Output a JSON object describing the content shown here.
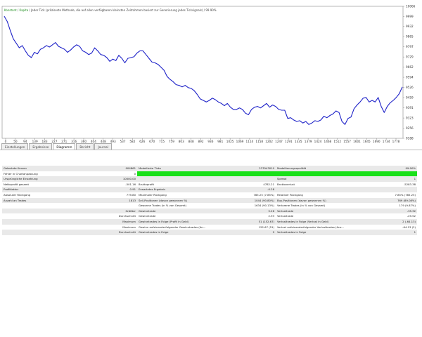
{
  "legend": {
    "konstant": "Konstant",
    "kapita": "Kapita",
    "text": "/ Jeder Tick (präziseste Methode, die auf allen verfügbaren kleinsten Zeitrahmen basiert zur Generierung jedes Ticksignals) / 99.90%"
  },
  "tabs": [
    "Einstellungen",
    "Ergebnisse",
    "Diagramm",
    "Bericht",
    "Journal"
  ],
  "active_tab": "Diagramm",
  "chart_data": {
    "type": "line",
    "series": [
      {
        "values": [
          10000,
          9965,
          9905,
          9850,
          9820,
          9790,
          9805,
          9770,
          9740,
          9725,
          9760,
          9750,
          9780,
          9790,
          9805,
          9795,
          9810,
          9825,
          9800,
          9790,
          9780,
          9760,
          9775,
          9795,
          9810,
          9800,
          9770,
          9760,
          9745,
          9755,
          9790,
          9770,
          9745,
          9740,
          9725,
          9700,
          9715,
          9705,
          9740,
          9720,
          9690,
          9720,
          9725,
          9730,
          9755,
          9770,
          9770,
          9745,
          9720,
          9695,
          9690,
          9680,
          9660,
          9640,
          9600,
          9580,
          9565,
          9545,
          9540,
          9530,
          9540,
          9525,
          9520,
          9505,
          9480,
          9450,
          9440,
          9430,
          9440,
          9455,
          9445,
          9430,
          9420,
          9405,
          9420,
          9395,
          9380,
          9380,
          9390,
          9380,
          9355,
          9345,
          9380,
          9395,
          9400,
          9390,
          9405,
          9420,
          9395,
          9410,
          9400,
          9380,
          9375,
          9375,
          9320,
          9325,
          9310,
          9300,
          9305,
          9290,
          9300,
          9280,
          9290,
          9305,
          9300,
          9310,
          9335,
          9325,
          9340,
          9350,
          9370,
          9360,
          9300,
          9280,
          9320,
          9330,
          9385,
          9410,
          9430,
          9455,
          9460,
          9430,
          9440,
          9430,
          9460,
          9400,
          9360,
          9400,
          9425,
          9440,
          9460,
          9485,
          9530
        ]
      }
    ],
    "x_ticks": [
      0,
      50,
      94,
      139,
      183,
      227,
      271,
      316,
      360,
      404,
      448,
      493,
      537,
      582,
      626,
      670,
      715,
      759,
      803,
      848,
      892,
      936,
      981,
      1025,
      1069,
      1114,
      1158,
      1202,
      1247,
      1291,
      1335,
      1379,
      1424,
      1468,
      1512,
      1557,
      1601,
      1645,
      1690,
      1734,
      1778
    ],
    "y_ticks": [
      10066,
      9999,
      9932,
      9865,
      9797,
      9729,
      9662,
      9594,
      9526,
      9459,
      9391,
      9323,
      9256,
      9188
    ],
    "ylim": [
      9188,
      10066
    ],
    "color": "#1e22c8"
  },
  "stats": {
    "rows": [
      {
        "c1": "Getestete Kerzen",
        "v1": "904861",
        "c2": "Modellierte Ticks",
        "v2": "237943010",
        "c3": "Modellierungsqualität",
        "v3": "99.90%"
      },
      {
        "c1": "Fehler in Chartanpassung",
        "v1": "0",
        "c2": "",
        "v2": "",
        "c3": "",
        "v3": "",
        "bar": true
      },
      {
        "c1": "Ursprüngliche Einzahlung",
        "v1": "10000.00",
        "c2": "",
        "v2": "",
        "c3": "Spread",
        "v3": "1"
      },
      {
        "c1": "Nettoprofit gesamt",
        "v1": "-501.16",
        "c2": "Bruttoprofit",
        "v2": "4782.21",
        "c3": "Bruttoverlust",
        "v3": "-5283.38"
      },
      {
        "c1": "Profitfaktor",
        "v1": "0.91",
        "c2": "Erwartetes Ergebnis",
        "v2": "-0.28",
        "c3": "",
        "v3": ""
      },
      {
        "c1": "Absoluter Rückgang",
        "v1": "779.80",
        "c2": "Maximaler Rückgang",
        "v2": "785.25 (7.85%)",
        "c3": "Relativer Rückgang",
        "v3": "7.85% (785.25)"
      },
      {
        "c1": "Anzahl an Trades",
        "v1": "1813",
        "c2": "Sell-Positionen (davon gewonnen %)",
        "v2": "1044 (90.80%)",
        "c3": "Buy-Positionen (davon gewonnen %)",
        "v3": "769 (89.08%)"
      },
      {
        "c1": "",
        "v1": "",
        "c2": "Gewonne Trades (in % von Gesamt)",
        "v2": "1634 (90.13%)",
        "c3": "Verlorene Trades (in % von Gesamt)",
        "v3": "179 (9.87%)"
      },
      {
        "c1": "",
        "v1": "Größter",
        "c2": "Gewinntrade",
        "v2": "5.26",
        "c3": "Verlusttrade",
        "v3": "-35.32"
      },
      {
        "c1": "",
        "v1": "Durchschnitt",
        "c2": "Gewinntrade",
        "v2": "2.93",
        "c3": "Verlusttrade",
        "v3": "-29.52"
      },
      {
        "c1": "",
        "v1": "Maximum",
        "c2": "Gewinntrades in Folge (Profit in Geld)",
        "v2": "51 (152.67)",
        "c3": "Verlusttrades in Folge (Verlust in Geld)",
        "v3": "2 (-64.13)"
      },
      {
        "c1": "",
        "v1": "Maximum",
        "c2": "Gewinn aufeinanderfolgender Gewinntrades (An...",
        "v2": "152.67 (51)",
        "c3": "Verlust aufeinanderfolgender Verlusttrades (Anz...",
        "v3": "-64.13 (2)"
      },
      {
        "c1": "",
        "v1": "Durchschnitt",
        "c2": "Gewinntrades in Folge",
        "v2": "9",
        "c3": "Verlusttrades in Folge",
        "v3": "1"
      }
    ]
  }
}
